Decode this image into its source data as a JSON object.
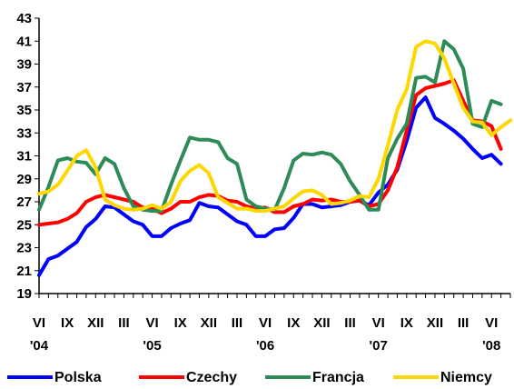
{
  "chart_data": {
    "type": "line",
    "title": "",
    "xlabel": "",
    "ylabel": "",
    "ylim": [
      19,
      43
    ],
    "yticks": [
      19,
      21,
      23,
      25,
      27,
      29,
      31,
      33,
      35,
      37,
      39,
      41,
      43
    ],
    "grid": false,
    "legend_position": "bottom",
    "x_tick_labels": [
      "VI",
      "IX",
      "XII",
      "III",
      "VI",
      "IX",
      "XII",
      "III",
      "VI",
      "IX",
      "XII",
      "III",
      "VI",
      "IX",
      "XII",
      "III",
      "VI"
    ],
    "year_labels": [
      {
        "label": "'04",
        "month_index": 0
      },
      {
        "label": "'05",
        "month_index": 12
      },
      {
        "label": "'06",
        "month_index": 24
      },
      {
        "label": "'07",
        "month_index": 36
      },
      {
        "label": "'08",
        "month_index": 48
      }
    ],
    "x_start": "2004-06",
    "series": [
      {
        "name": "Polska",
        "color": "#0000ff",
        "values": [
          20.6,
          22.0,
          22.3,
          22.9,
          23.5,
          24.8,
          25.5,
          26.6,
          26.5,
          25.9,
          25.3,
          25.0,
          24.0,
          24.0,
          24.7,
          25.1,
          25.4,
          26.9,
          26.6,
          26.5,
          25.9,
          25.3,
          25.0,
          24.0,
          24.0,
          24.6,
          24.7,
          25.6,
          26.8,
          26.8,
          26.5,
          26.6,
          26.7,
          27.0,
          27.1,
          26.7,
          27.8,
          28.5,
          29.8,
          32.3,
          35.2,
          36.1,
          34.3,
          33.8,
          33.2,
          32.5,
          31.6,
          30.8,
          31.1,
          30.3
        ]
      },
      {
        "name": "Czechy",
        "color": "#ff0000",
        "values": [
          25.0,
          25.1,
          25.2,
          25.5,
          26.0,
          27.0,
          27.4,
          27.6,
          27.4,
          27.2,
          27.0,
          26.5,
          26.4,
          26.0,
          26.4,
          27.0,
          27.0,
          27.4,
          27.6,
          27.5,
          27.1,
          27.0,
          26.6,
          26.4,
          26.5,
          26.1,
          26.1,
          26.6,
          26.8,
          27.2,
          27.1,
          27.2,
          27.0,
          27.0,
          27.1,
          26.6,
          26.8,
          28.0,
          30.0,
          33.2,
          36.3,
          36.9,
          37.1,
          37.3,
          37.6,
          35.8,
          34.1,
          34.0,
          33.6,
          31.6
        ]
      },
      {
        "name": "Francja",
        "color": "#2e8b57",
        "values": [
          26.3,
          28.3,
          30.6,
          30.8,
          30.5,
          30.4,
          29.4,
          30.8,
          30.3,
          28.2,
          26.6,
          26.3,
          26.2,
          26.2,
          28.5,
          30.6,
          32.6,
          32.4,
          32.4,
          32.2,
          30.8,
          30.3,
          27.2,
          26.6,
          26.4,
          26.3,
          28.2,
          30.6,
          31.2,
          31.1,
          31.3,
          31.1,
          30.3,
          28.8,
          27.6,
          26.3,
          26.3,
          30.8,
          32.5,
          33.8,
          37.8,
          37.9,
          37.4,
          41.0,
          40.3,
          38.6,
          33.8,
          33.5,
          35.8,
          35.5
        ]
      },
      {
        "name": "Niemcy",
        "color": "#ffd700",
        "values": [
          27.7,
          27.9,
          28.5,
          29.7,
          31.0,
          31.5,
          30.0,
          27.2,
          26.7,
          26.4,
          26.3,
          26.4,
          26.7,
          26.4,
          27.0,
          28.8,
          29.7,
          30.2,
          29.5,
          27.4,
          26.9,
          26.4,
          26.4,
          26.2,
          26.2,
          26.4,
          26.6,
          27.3,
          27.9,
          28.0,
          27.6,
          26.8,
          26.9,
          27.1,
          27.5,
          27.4,
          29.0,
          31.9,
          35.0,
          36.8,
          40.5,
          41.0,
          40.8,
          39.5,
          37.3,
          35.2,
          34.0,
          33.9,
          32.8,
          33.5,
          34.1
        ]
      }
    ]
  }
}
